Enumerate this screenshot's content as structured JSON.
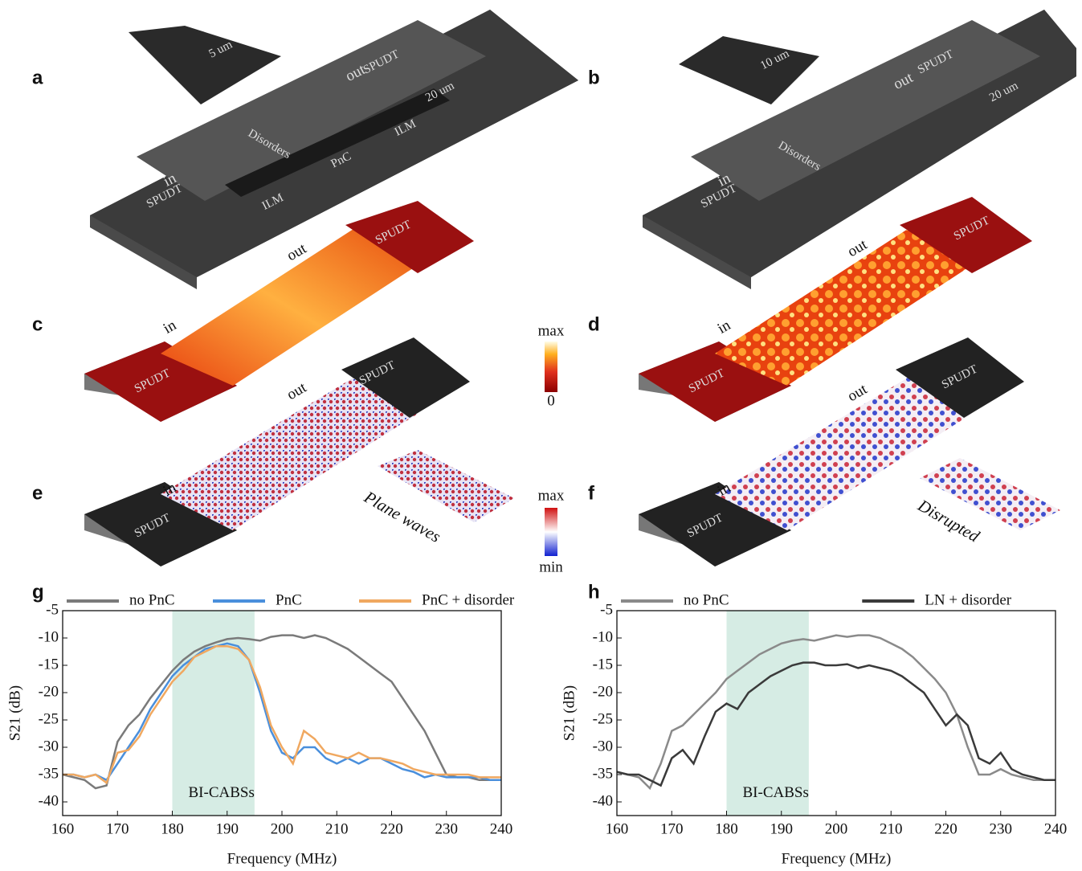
{
  "illustrations": {
    "panels": [
      {
        "label": "a",
        "texts": [
          "SPUDT",
          "in",
          "out",
          "5 um",
          "20 um",
          "Disorders",
          "PnC",
          "ILM"
        ]
      },
      {
        "label": "b",
        "texts": [
          "SPUDT",
          "in",
          "out",
          "10 um",
          "20 um",
          "Disorders"
        ]
      },
      {
        "label": "c",
        "texts": [
          "SPUDT",
          "in",
          "out"
        ]
      },
      {
        "label": "d",
        "texts": [
          "SPUDT",
          "in",
          "out"
        ]
      },
      {
        "label": "e",
        "texts": [
          "SPUDT",
          "in",
          "out",
          "Plane waves"
        ]
      },
      {
        "label": "f",
        "texts": [
          "SPUDT",
          "in",
          "out",
          "Disrupted"
        ]
      }
    ],
    "colorbars": [
      {
        "top": "max",
        "bottom": "0"
      },
      {
        "top": "max",
        "bottom": "min"
      }
    ]
  },
  "chart_data": [
    {
      "type": "line",
      "panel": "g",
      "x_label": "Frequency (MHz)",
      "y_label": "S21 (dB)",
      "x": [
        160,
        162,
        164,
        166,
        168,
        170,
        172,
        174,
        176,
        178,
        180,
        182,
        184,
        186,
        188,
        190,
        192,
        194,
        196,
        198,
        200,
        202,
        204,
        206,
        208,
        210,
        212,
        214,
        216,
        218,
        220,
        222,
        224,
        226,
        228,
        230,
        232,
        234,
        236,
        238,
        240
      ],
      "series": [
        {
          "name": "no PnC",
          "color": "#7a7a7a",
          "values": [
            -35,
            -35.5,
            -36,
            -37.5,
            -37,
            -29,
            -26,
            -24,
            -21,
            -18.5,
            -16,
            -14,
            -12.5,
            -11.5,
            -10.8,
            -10.2,
            -10,
            -10.2,
            -10.5,
            -9.8,
            -9.5,
            -9.5,
            -10,
            -9.5,
            -10,
            -11,
            -12,
            -13.5,
            -15,
            -16.5,
            -18,
            -21,
            -24,
            -27,
            -31,
            -35,
            -35.5,
            -35.5,
            -36,
            -36,
            -36
          ]
        },
        {
          "name": "PnC",
          "color": "#4a8fdc",
          "values": [
            -35,
            -35,
            -35.5,
            -35,
            -36,
            -33,
            -30,
            -27,
            -23,
            -20,
            -17,
            -15,
            -13.5,
            -12,
            -11.5,
            -11,
            -11.5,
            -14,
            -20,
            -27,
            -31,
            -32,
            -30,
            -30,
            -32,
            -33,
            -32,
            -33,
            -32,
            -32,
            -33,
            -34,
            -34.5,
            -35.5,
            -35,
            -35.5,
            -35.5,
            -35.5,
            -35.5,
            -36,
            -36
          ]
        },
        {
          "name": "PnC + disorder",
          "color": "#f0a860",
          "values": [
            -35,
            -35,
            -35.5,
            -35,
            -36.5,
            -31,
            -30.5,
            -28,
            -24,
            -21,
            -18,
            -16,
            -13.5,
            -12.5,
            -11.5,
            -11.5,
            -12,
            -14,
            -19,
            -26,
            -30,
            -33,
            -27,
            -28.5,
            -31,
            -31.5,
            -32,
            -31,
            -32,
            -32,
            -32.5,
            -33,
            -34,
            -34.5,
            -35,
            -35,
            -35,
            -35,
            -35.5,
            -35.5,
            -35.5
          ]
        }
      ],
      "shaded_region": {
        "x": [
          180,
          195
        ],
        "label": "BI-CABSs",
        "color": "#d6ece4"
      },
      "xlim": [
        160,
        240
      ],
      "xticks": [
        160,
        170,
        180,
        190,
        200,
        210,
        220,
        230,
        240
      ],
      "ylim": [
        -42.5,
        -5
      ],
      "yticks": [
        -40,
        -35,
        -30,
        -25,
        -20,
        -15,
        -10,
        -5
      ]
    },
    {
      "type": "line",
      "panel": "h",
      "x_label": "Frequency (MHz)",
      "y_label": "S21 (dB)",
      "x": [
        160,
        162,
        164,
        166,
        168,
        170,
        172,
        174,
        176,
        178,
        180,
        182,
        184,
        186,
        188,
        190,
        192,
        194,
        196,
        198,
        200,
        202,
        204,
        206,
        208,
        210,
        212,
        214,
        216,
        218,
        220,
        222,
        224,
        226,
        228,
        230,
        232,
        234,
        236,
        238,
        240
      ],
      "series": [
        {
          "name": "no PnC",
          "color": "#8a8a8a",
          "values": [
            -34.5,
            -35,
            -35.5,
            -37.5,
            -33,
            -27,
            -26,
            -24,
            -22,
            -20,
            -17.5,
            -16,
            -14.5,
            -13,
            -12,
            -11,
            -10.5,
            -10.2,
            -10.5,
            -10,
            -9.5,
            -9.8,
            -9.5,
            -9.5,
            -10,
            -11,
            -12,
            -13.5,
            -15.5,
            -17.5,
            -20,
            -24,
            -30,
            -35,
            -35,
            -34,
            -35,
            -35.5,
            -36,
            -36,
            -36
          ]
        },
        {
          "name": "LN + disorder",
          "color": "#3a3a3a",
          "values": [
            -34.5,
            -35,
            -35,
            -36,
            -37,
            -32,
            -30.5,
            -33,
            -28,
            -23.5,
            -22,
            -23,
            -20,
            -18.5,
            -17,
            -16,
            -15,
            -14.5,
            -14.5,
            -15,
            -15,
            -14.8,
            -15.5,
            -15,
            -15.5,
            -16,
            -17,
            -18.5,
            -20,
            -23,
            -26,
            -24,
            -26,
            -32,
            -33,
            -31,
            -34,
            -35,
            -35.5,
            -36,
            -36
          ]
        }
      ],
      "shaded_region": {
        "x": [
          180,
          195
        ],
        "label": "BI-CABSs",
        "color": "#d6ece4"
      },
      "xlim": [
        160,
        240
      ],
      "xticks": [
        160,
        170,
        180,
        190,
        200,
        210,
        220,
        230,
        240
      ],
      "ylim": [
        -42.5,
        -5
      ],
      "yticks": [
        -40,
        -35,
        -30,
        -25,
        -20,
        -15,
        -10,
        -5
      ]
    }
  ]
}
